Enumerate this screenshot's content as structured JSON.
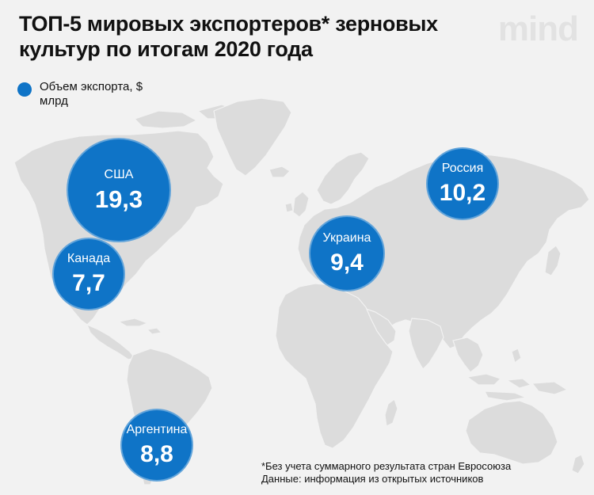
{
  "title": "ТОП-5 мировых экспортеров* зерновых культур по итогам 2020 года",
  "logo": "mind",
  "legend": {
    "label": "Объем экспорта, $ млрд",
    "color": "#0f74c7"
  },
  "countries": [
    {
      "name": "США",
      "value": "19,3"
    },
    {
      "name": "Россия",
      "value": "10,2"
    },
    {
      "name": "Украина",
      "value": "9,4"
    },
    {
      "name": "Аргентина",
      "value": "8,8"
    },
    {
      "name": "Канада",
      "value": "7,7"
    }
  ],
  "footnote": {
    "line1": "*Без учета суммарного результата стран Евросоюза",
    "line2": "Данные: информация из открытых источников"
  },
  "colors": {
    "background": "#f2f2f2",
    "land": "#dcdcdc",
    "bubble": "#0f74c7"
  }
}
